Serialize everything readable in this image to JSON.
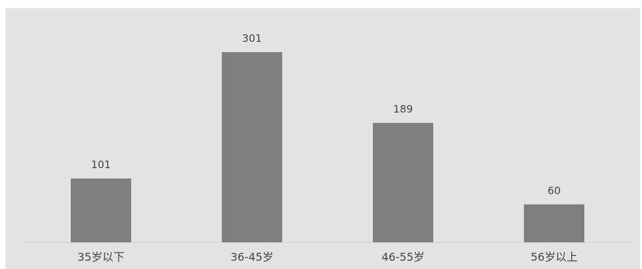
{
  "chart_data": {
    "type": "bar",
    "categories": [
      "35岁以下",
      "36-45岁",
      "46-55岁",
      "56岁以上"
    ],
    "values": [
      101,
      301,
      189,
      60
    ],
    "title": "",
    "xlabel": "",
    "ylabel": "",
    "ylim": [
      0,
      301
    ],
    "grid": false,
    "legend": "none",
    "show_data_labels": true
  },
  "colors": {
    "plot_background": "#e3e3e3",
    "bar": "#7f7f7f",
    "axis_line": "#d0d0d0",
    "text": "#444444"
  }
}
